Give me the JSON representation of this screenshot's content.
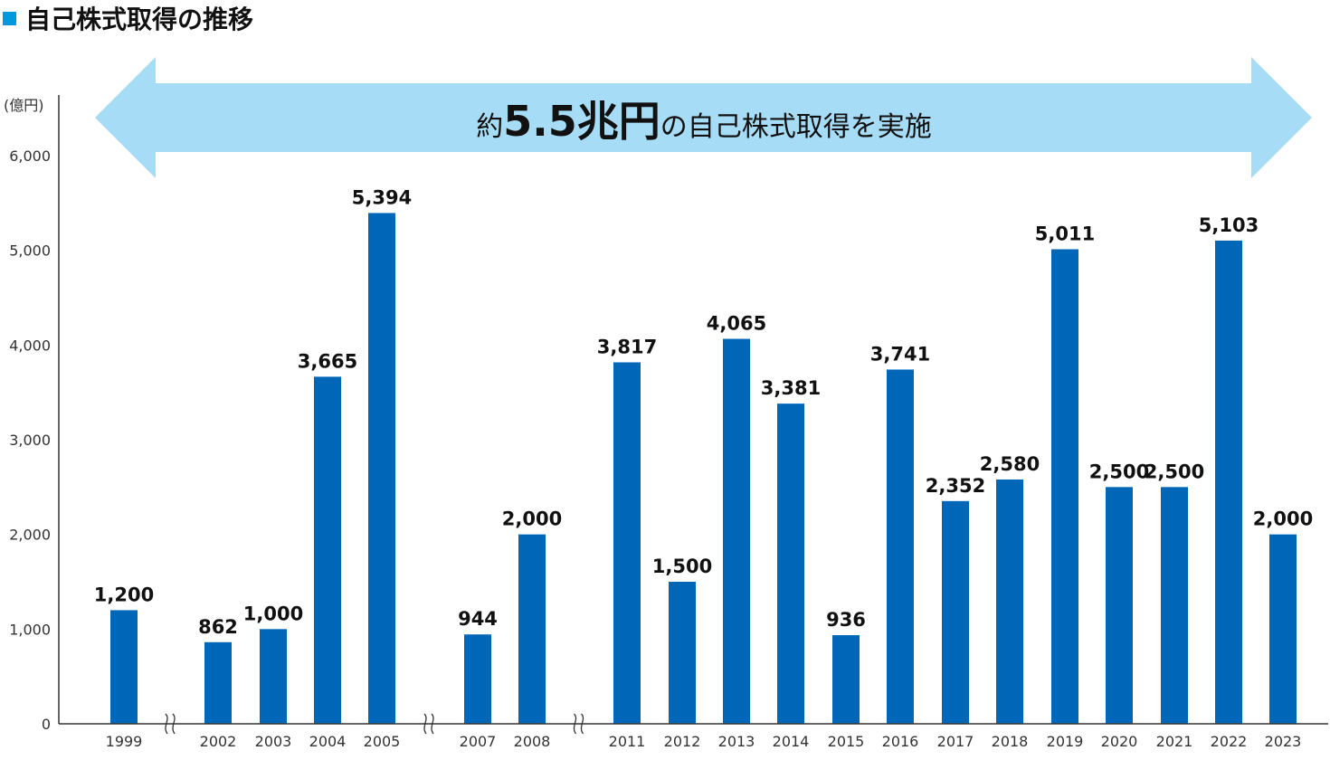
{
  "title": "自己株式取得の推移",
  "banner": {
    "prefix": "約",
    "amount": "5.5兆円",
    "suffix": "の自己株式取得を実施"
  },
  "colors": {
    "bar": "#0066b8",
    "arrow": "#a6dcf5",
    "marker": "#0099dd",
    "axis": "#333333"
  },
  "chart_data": {
    "type": "bar",
    "ylabel": "(億円)",
    "ylim": [
      0,
      6000
    ],
    "yticks": [
      0,
      1000,
      2000,
      3000,
      4000,
      5000,
      6000
    ],
    "ytick_labels": [
      "0",
      "1,000",
      "2,000",
      "3,000",
      "4,000",
      "5,000",
      "6,000"
    ],
    "grid": false,
    "categories": [
      "1999",
      "2002",
      "2003",
      "2004",
      "2005",
      "2007",
      "2008",
      "2011",
      "2012",
      "2013",
      "2014",
      "2015",
      "2016",
      "2017",
      "2018",
      "2019",
      "2020",
      "2021",
      "2022",
      "2023"
    ],
    "values": [
      1200,
      862,
      1000,
      3665,
      5394,
      944,
      2000,
      3817,
      1500,
      4065,
      3381,
      936,
      3741,
      2352,
      2580,
      5011,
      2500,
      2500,
      5103,
      2000
    ],
    "data_labels": [
      "1,200",
      "862",
      "1,000",
      "3,665",
      "5,394",
      "944",
      "2,000",
      "3,817",
      "1,500",
      "4,065",
      "3,381",
      "936",
      "3,741",
      "2,352",
      "2,580",
      "5,011",
      "2,500",
      "2,500",
      "5,103",
      "2,000"
    ],
    "axis_breaks_after": [
      "1999",
      "2005",
      "2008"
    ]
  }
}
